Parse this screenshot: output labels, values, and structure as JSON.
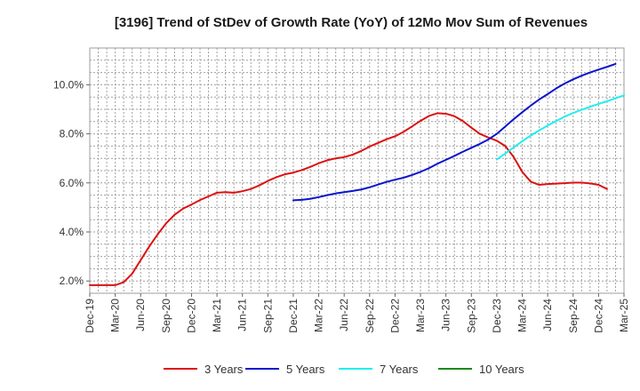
{
  "chart_data": {
    "type": "line",
    "title": "[3196]  Trend of StDev of Growth Rate (YoY) of 12Mo Mov Sum of Revenues",
    "xlabel": "",
    "ylabel": "",
    "x_ticks": [
      "Dec-19",
      "Mar-20",
      "Jun-20",
      "Sep-20",
      "Dec-20",
      "Mar-21",
      "Jun-21",
      "Sep-21",
      "Dec-21",
      "Mar-22",
      "Jun-22",
      "Sep-22",
      "Dec-22",
      "Mar-23",
      "Jun-23",
      "Sep-23",
      "Dec-23",
      "Mar-24",
      "Jun-24",
      "Sep-24",
      "Dec-24",
      "Mar-25"
    ],
    "y_ticks": [
      2.0,
      4.0,
      6.0,
      8.0,
      10.0
    ],
    "y_tick_labels": [
      "2.0%",
      "4.0%",
      "6.0%",
      "8.0%",
      "10.0%"
    ],
    "ylim": [
      1.5,
      11.5
    ],
    "x_range": [
      0,
      63
    ],
    "grid": true,
    "legend_position": "bottom",
    "series": [
      {
        "name": "3 Years",
        "color": "#dd1111",
        "start_index": 0,
        "values": [
          1.83,
          1.83,
          1.83,
          1.83,
          1.95,
          2.3,
          2.85,
          3.4,
          3.9,
          4.35,
          4.7,
          4.95,
          5.12,
          5.3,
          5.45,
          5.6,
          5.62,
          5.6,
          5.66,
          5.75,
          5.9,
          6.08,
          6.23,
          6.35,
          6.42,
          6.52,
          6.65,
          6.8,
          6.92,
          7.0,
          7.05,
          7.15,
          7.3,
          7.48,
          7.63,
          7.78,
          7.9,
          8.08,
          8.3,
          8.53,
          8.73,
          8.84,
          8.82,
          8.72,
          8.52,
          8.25,
          8.0,
          7.85,
          7.72,
          7.5,
          7.05,
          6.45,
          6.05,
          5.92,
          5.95,
          5.97,
          5.99,
          6.01,
          6.01,
          5.98,
          5.92,
          5.75
        ]
      },
      {
        "name": "5 Years",
        "color": "#0a14cc",
        "start_index": 24,
        "values": [
          5.29,
          5.31,
          5.35,
          5.42,
          5.5,
          5.57,
          5.62,
          5.67,
          5.73,
          5.82,
          5.93,
          6.04,
          6.13,
          6.21,
          6.32,
          6.45,
          6.6,
          6.78,
          6.94,
          7.1,
          7.27,
          7.43,
          7.59,
          7.77,
          8.0,
          8.3,
          8.6,
          8.88,
          9.15,
          9.4,
          9.62,
          9.85,
          10.05,
          10.22,
          10.37,
          10.5,
          10.62,
          10.73,
          10.85
        ]
      },
      {
        "name": "7 Years",
        "color": "#22eeee",
        "start_index": 48,
        "values": [
          6.95,
          7.2,
          7.45,
          7.7,
          7.93,
          8.14,
          8.34,
          8.52,
          8.7,
          8.85,
          8.98,
          9.1,
          9.22,
          9.33,
          9.45,
          9.57
        ]
      },
      {
        "name": "10 Years",
        "color": "#1a8a1a",
        "start_index": 0,
        "values": []
      }
    ]
  }
}
